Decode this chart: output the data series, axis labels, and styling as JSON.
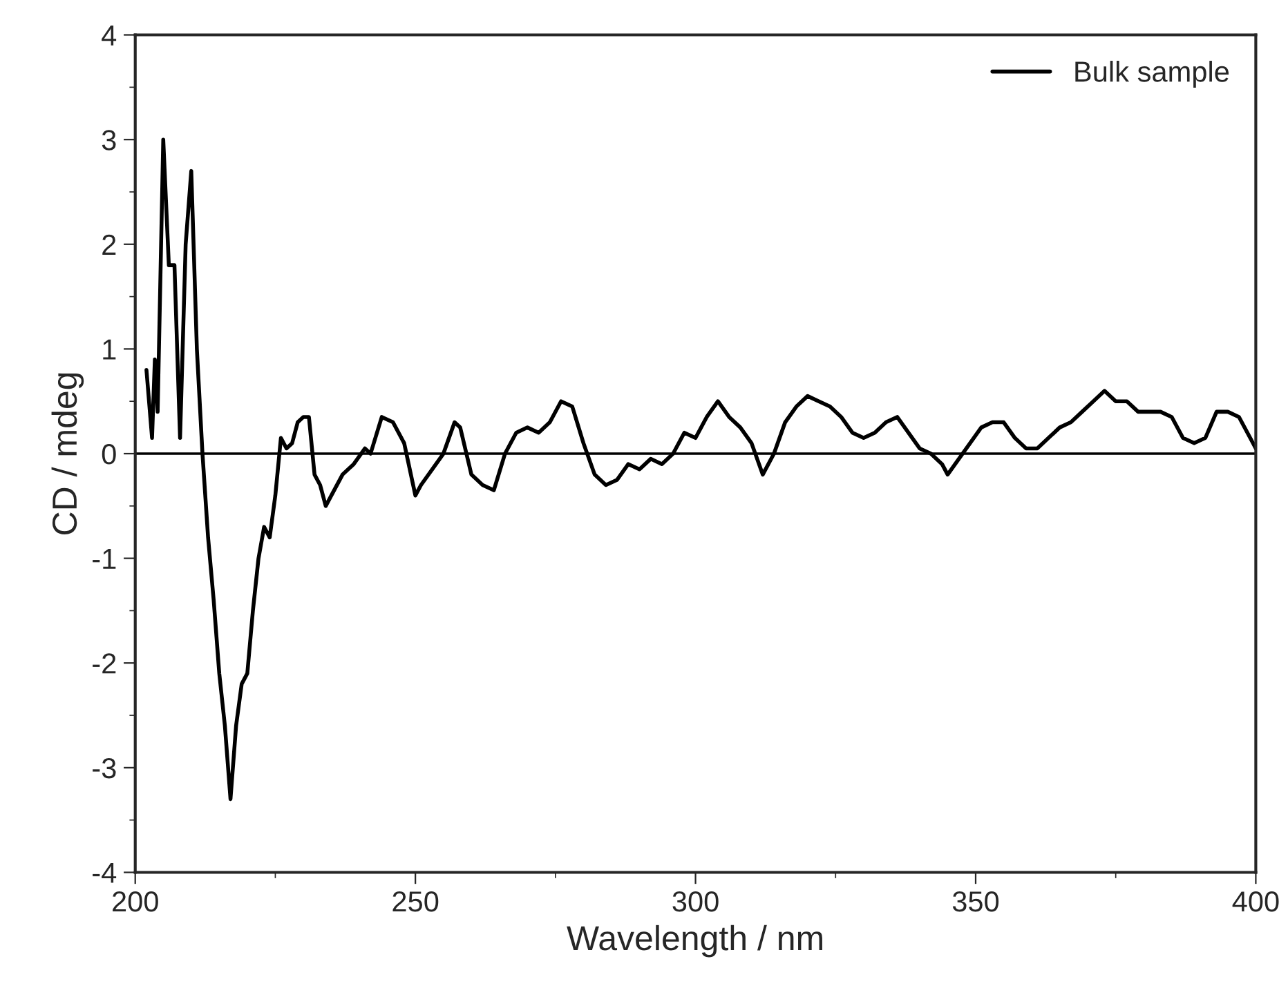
{
  "chart_data": {
    "type": "line",
    "xlabel": "Wavelength / nm",
    "ylabel": "CD / mdeg",
    "xlim": [
      200,
      400
    ],
    "xticks": [
      200,
      250,
      300,
      350,
      400
    ],
    "ylim": [
      -4,
      4
    ],
    "yticks": [
      -4,
      -3,
      -2,
      -1,
      0,
      1,
      2,
      3,
      4
    ],
    "grid": false,
    "legend": "top right",
    "line_style": "solid",
    "marker": "none",
    "ref_lines": [
      {
        "axis": "y",
        "value": 0,
        "color": "#000000"
      }
    ],
    "series": [
      {
        "name": "Bulk sample",
        "color": "#000000",
        "x": [
          202,
          203,
          203.5,
          204,
          205,
          206,
          207,
          208,
          209,
          210,
          211,
          212,
          213,
          214,
          215,
          216,
          217,
          218,
          219,
          220,
          221,
          222,
          223,
          224,
          225,
          226,
          227,
          228,
          229,
          230,
          231,
          232,
          233,
          234,
          235,
          237,
          239,
          241,
          242,
          244,
          246,
          248,
          250,
          251,
          253,
          255,
          257,
          258,
          260,
          262,
          264,
          266,
          268,
          270,
          272,
          274,
          276,
          278,
          280,
          282,
          284,
          286,
          288,
          290,
          292,
          294,
          296,
          298,
          300,
          302,
          304,
          306,
          308,
          310,
          312,
          314,
          316,
          318,
          320,
          322,
          324,
          326,
          328,
          330,
          332,
          334,
          336,
          338,
          340,
          342,
          344,
          345,
          347,
          349,
          351,
          353,
          355,
          357,
          359,
          361,
          363,
          365,
          367,
          369,
          371,
          373,
          375,
          377,
          379,
          381,
          383,
          385,
          387,
          389,
          391,
          393,
          395,
          397,
          399,
          400
        ],
        "values": [
          0.8,
          0.15,
          0.9,
          0.4,
          3.0,
          1.8,
          1.8,
          0.15,
          2.0,
          2.7,
          1.0,
          0.0,
          -0.8,
          -1.4,
          -2.1,
          -2.6,
          -3.3,
          -2.6,
          -2.2,
          -2.1,
          -1.5,
          -1.0,
          -0.7,
          -0.8,
          -0.4,
          0.15,
          0.05,
          0.1,
          0.3,
          0.35,
          0.35,
          -0.2,
          -0.3,
          -0.5,
          -0.4,
          -0.2,
          -0.1,
          0.05,
          0.0,
          0.35,
          0.3,
          0.1,
          -0.4,
          -0.3,
          -0.15,
          0.0,
          0.3,
          0.25,
          -0.2,
          -0.3,
          -0.35,
          0.0,
          0.2,
          0.25,
          0.2,
          0.3,
          0.5,
          0.45,
          0.1,
          -0.2,
          -0.3,
          -0.25,
          -0.1,
          -0.15,
          -0.05,
          -0.1,
          0.0,
          0.2,
          0.15,
          0.35,
          0.5,
          0.35,
          0.25,
          0.1,
          -0.2,
          0.0,
          0.3,
          0.45,
          0.55,
          0.5,
          0.45,
          0.35,
          0.2,
          0.15,
          0.2,
          0.3,
          0.35,
          0.2,
          0.05,
          0.0,
          -0.1,
          -0.2,
          -0.05,
          0.1,
          0.25,
          0.3,
          0.3,
          0.15,
          0.05,
          0.05,
          0.15,
          0.25,
          0.3,
          0.4,
          0.5,
          0.6,
          0.5,
          0.5,
          0.4,
          0.4,
          0.4,
          0.35,
          0.15,
          0.1,
          0.15,
          0.4,
          0.4,
          0.35,
          0.15,
          0.05
        ]
      }
    ]
  }
}
